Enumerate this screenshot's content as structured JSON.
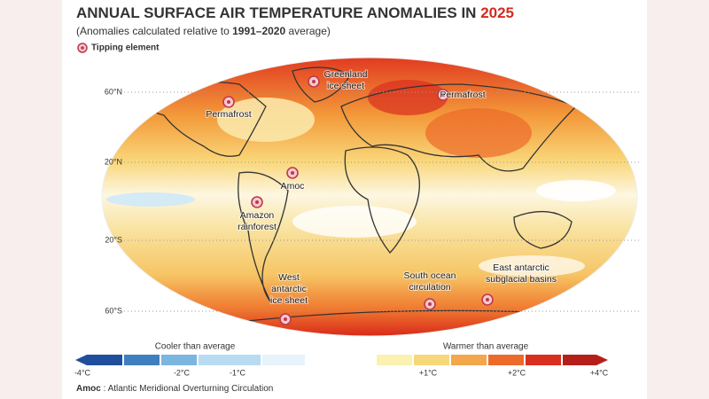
{
  "header": {
    "title": "ANNUAL SURFACE AIR TEMPERATURE ANOMALIES IN ",
    "title_year": "2025",
    "subtitle_start": "(Anomalies calculated relative to ",
    "subtitle_period": "1991–2020",
    "subtitle_end": " average)",
    "legend": "Tipping element"
  },
  "latitudes": [
    "60°N",
    "20°N",
    "20°S",
    "60°S"
  ],
  "tipping_elements": [
    {
      "lines": [
        "Greenland",
        "ice sheet"
      ]
    },
    {
      "lines": [
        "Permafrost"
      ]
    },
    {
      "lines": [
        "Permafrost"
      ]
    },
    {
      "lines": [
        "Amoc"
      ]
    },
    {
      "lines": [
        "Amazon",
        "rainforest"
      ]
    },
    {
      "lines": [
        "West",
        "antarctic",
        "ice sheet"
      ]
    },
    {
      "lines": [
        "South ocean",
        "circulation"
      ]
    },
    {
      "lines": [
        "East antarctic",
        "subglacial basins"
      ]
    }
  ],
  "scale": {
    "cool_label": "Cooler than average",
    "warm_label": "Warmer than average",
    "ticks": [
      "-4°C",
      "-2°C",
      "-1°C",
      "+1°C",
      "+2°C",
      "+4°C"
    ]
  },
  "footnote": {
    "term": "Amoc",
    "definition": " : Atlantic Meridional Overturning Circulation"
  }
}
